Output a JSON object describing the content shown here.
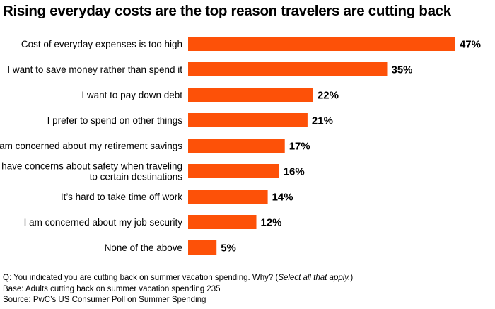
{
  "title": "Rising everyday costs are the top reason travelers are cutting back",
  "chart_data": {
    "type": "bar",
    "orientation": "horizontal",
    "categories": [
      "Cost of everyday expenses is too high",
      "I want to save money rather than spend it",
      "I want to pay down debt",
      "I prefer to spend on other things",
      "I am concerned about my retirement savings",
      [
        "I have concerns about safety when traveling",
        "to certain destinations"
      ],
      "It’s hard to take time off work",
      "I am concerned about my job security",
      "None of the above"
    ],
    "values": [
      47,
      35,
      22,
      21,
      17,
      16,
      14,
      12,
      5
    ],
    "value_labels": [
      "47%",
      "35%",
      "22%",
      "21%",
      "17%",
      "16%",
      "14%",
      "12%",
      "5%"
    ],
    "xlim": [
      0,
      47
    ],
    "bar_color": "#fd5108",
    "grid": false,
    "legend": "none"
  },
  "notes": {
    "question_prefix": "Q: You indicated you are cutting back on summer vacation spending. Why? (",
    "question_italic": "Select all that apply.",
    "question_suffix": ")",
    "base": "Base: Adults cutting back on summer vacation spending 235",
    "source": "Source: PwC’s US Consumer Poll on Summer Spending"
  }
}
